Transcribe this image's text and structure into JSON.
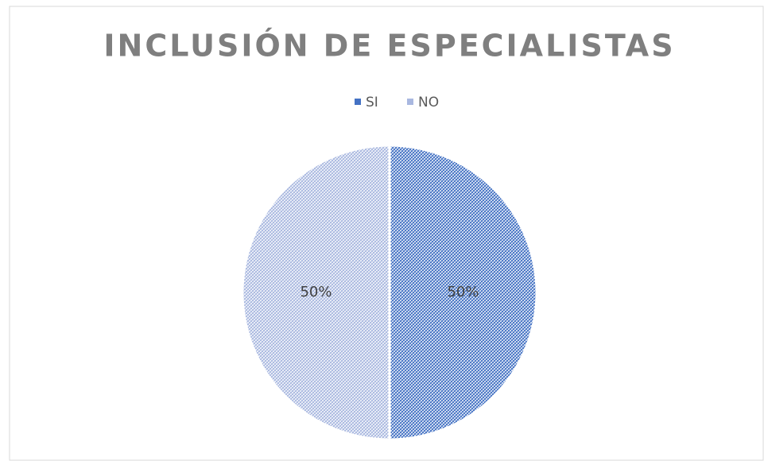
{
  "chart_data": {
    "type": "pie",
    "title": "INCLUSIÓN DE ESPECIALISTAS",
    "categories": [
      "SI",
      "NO"
    ],
    "values": [
      50,
      50
    ],
    "value_labels": [
      "50%",
      "50%"
    ],
    "colors": [
      "#4472c4",
      "#a9b8e0"
    ],
    "legend": "top"
  }
}
